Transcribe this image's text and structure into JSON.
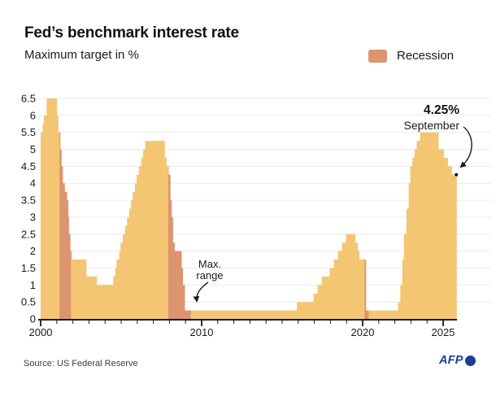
{
  "header": {
    "title": "Fed’s benchmark interest rate",
    "subtitle": "Maximum target in %"
  },
  "legend": {
    "label": "Recession",
    "color": "#dd9470"
  },
  "annotations": {
    "max_range": {
      "line1": "Max.",
      "line2": "range"
    },
    "latest": {
      "value": "4.25%",
      "month": "September"
    }
  },
  "footer": {
    "source": "Source: US Federal Reserve",
    "logo": "AFP"
  },
  "colors": {
    "area": "#f4c673",
    "recession": "#dd9470",
    "grid": "#eaeaea",
    "axis": "#1a1a1a",
    "afp_blue": "#1c3e94"
  },
  "chart_data": {
    "type": "area",
    "title": "Fed’s benchmark interest rate",
    "subtitle": "Maximum target in %",
    "xlabel": "",
    "ylabel": "Maximum target in %",
    "xlim": [
      2000,
      2025.85
    ],
    "ylim": [
      0,
      6.5
    ],
    "grid": "horizontal",
    "legend_position": "top-right",
    "x_ticks_major": [
      {
        "year": 2000,
        "label": "2000"
      },
      {
        "year": 2010,
        "label": "2010"
      },
      {
        "year": 2020,
        "label": "2020"
      },
      {
        "year": 2025,
        "label": "2025"
      }
    ],
    "x_minor_tick_every_years": 1,
    "y_ticks": [
      {
        "value": 0,
        "label": "0"
      },
      {
        "value": 0.5,
        "label": "0.5"
      },
      {
        "value": 1,
        "label": "1"
      },
      {
        "value": 1.5,
        "label": "1.5"
      },
      {
        "value": 2,
        "label": "2"
      },
      {
        "value": 2.5,
        "label": "2.5"
      },
      {
        "value": 3,
        "label": "3"
      },
      {
        "value": 3.5,
        "label": "3.5"
      },
      {
        "value": 4,
        "label": "4"
      },
      {
        "value": 4.5,
        "label": "4.5"
      },
      {
        "value": 5,
        "label": "5"
      },
      {
        "value": 5.5,
        "label": "5.5"
      },
      {
        "value": 6,
        "label": "6"
      },
      {
        "value": 6.5,
        "label": "6.5"
      }
    ],
    "series": [
      {
        "name": "Fed benchmark interest rate, maximum target (%)",
        "color": "#f4c673",
        "steps": [
          [
            2000.0,
            5.5
          ],
          [
            2000.12,
            5.75
          ],
          [
            2000.2,
            6.0
          ],
          [
            2000.37,
            6.5
          ],
          [
            2001.02,
            6.0
          ],
          [
            2001.1,
            5.5
          ],
          [
            2001.22,
            5.0
          ],
          [
            2001.3,
            4.5
          ],
          [
            2001.38,
            4.0
          ],
          [
            2001.5,
            3.75
          ],
          [
            2001.64,
            3.5
          ],
          [
            2001.72,
            3.0
          ],
          [
            2001.76,
            2.5
          ],
          [
            2001.85,
            2.0
          ],
          [
            2001.95,
            1.75
          ],
          [
            2002.85,
            1.25
          ],
          [
            2003.5,
            1.0
          ],
          [
            2004.5,
            1.25
          ],
          [
            2004.63,
            1.5
          ],
          [
            2004.71,
            1.75
          ],
          [
            2004.88,
            2.0
          ],
          [
            2004.96,
            2.25
          ],
          [
            2005.1,
            2.5
          ],
          [
            2005.24,
            2.75
          ],
          [
            2005.37,
            3.0
          ],
          [
            2005.5,
            3.25
          ],
          [
            2005.61,
            3.5
          ],
          [
            2005.71,
            3.75
          ],
          [
            2005.86,
            4.0
          ],
          [
            2005.96,
            4.25
          ],
          [
            2006.1,
            4.5
          ],
          [
            2006.25,
            4.75
          ],
          [
            2006.37,
            5.0
          ],
          [
            2006.5,
            5.25
          ],
          [
            2007.71,
            4.75
          ],
          [
            2007.83,
            4.5
          ],
          [
            2007.95,
            4.25
          ],
          [
            2008.06,
            3.5
          ],
          [
            2008.14,
            3.0
          ],
          [
            2008.22,
            2.25
          ],
          [
            2008.33,
            2.0
          ],
          [
            2008.76,
            1.5
          ],
          [
            2008.84,
            1.0
          ],
          [
            2008.96,
            0.25
          ],
          [
            2015.92,
            0.5
          ],
          [
            2016.95,
            0.75
          ],
          [
            2017.2,
            1.0
          ],
          [
            2017.46,
            1.25
          ],
          [
            2017.95,
            1.5
          ],
          [
            2018.21,
            1.75
          ],
          [
            2018.46,
            2.0
          ],
          [
            2018.71,
            2.25
          ],
          [
            2018.96,
            2.5
          ],
          [
            2019.55,
            2.25
          ],
          [
            2019.71,
            2.0
          ],
          [
            2019.8,
            1.75
          ],
          [
            2020.21,
            0.25
          ],
          [
            2022.2,
            0.5
          ],
          [
            2022.34,
            1.0
          ],
          [
            2022.46,
            1.75
          ],
          [
            2022.56,
            2.5
          ],
          [
            2022.71,
            3.25
          ],
          [
            2022.86,
            4.0
          ],
          [
            2022.96,
            4.5
          ],
          [
            2023.09,
            4.75
          ],
          [
            2023.22,
            5.0
          ],
          [
            2023.36,
            5.25
          ],
          [
            2023.56,
            5.5
          ],
          [
            2024.72,
            5.0
          ],
          [
            2025.05,
            4.75
          ],
          [
            2025.3,
            4.5
          ],
          [
            2025.55,
            4.25
          ]
        ]
      }
    ],
    "recessions": [
      {
        "start": 2001.17,
        "end": 2001.88
      },
      {
        "start": 2007.92,
        "end": 2009.33
      },
      {
        "start": 2020.12,
        "end": 2020.38
      }
    ],
    "recession_color": "#dd9470",
    "end_point": {
      "year": 2025.82,
      "value": 4.25,
      "label": "4.25%",
      "month": "September"
    }
  }
}
